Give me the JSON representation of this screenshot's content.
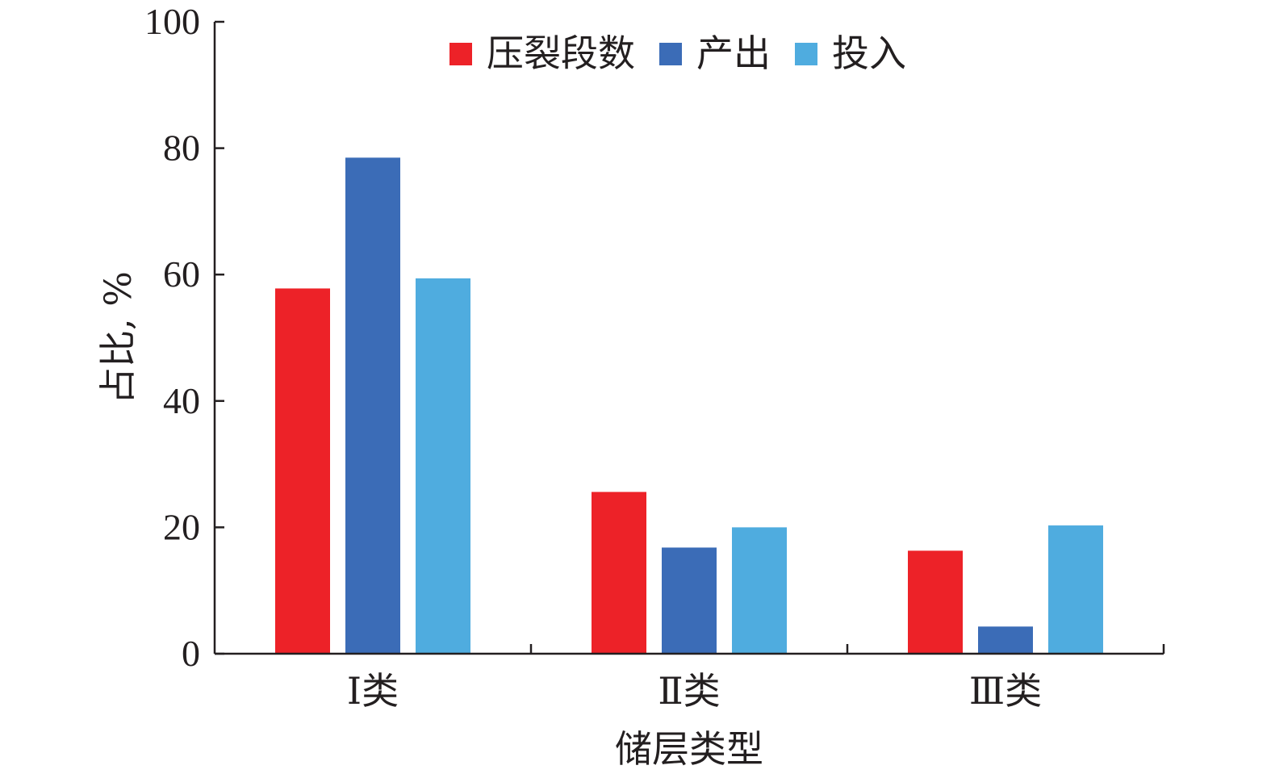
{
  "chart_data": {
    "type": "bar",
    "xlabel": "储层类型",
    "ylabel": "占比, %",
    "ylim": [
      0,
      100
    ],
    "yticks": [
      0,
      20,
      40,
      60,
      80,
      100
    ],
    "categories": [
      "Ⅰ类",
      "Ⅱ类",
      "Ⅲ类"
    ],
    "legend_position": "top-right",
    "grid": false,
    "series": [
      {
        "name": "压裂段数",
        "color": "#ed2228",
        "values": [
          57.8,
          25.6,
          16.3
        ]
      },
      {
        "name": "产出",
        "color": "#3b6cb7",
        "values": [
          78.5,
          16.8,
          4.3
        ]
      },
      {
        "name": "投入",
        "color": "#4facdf",
        "values": [
          59.4,
          20.0,
          20.3
        ]
      }
    ]
  }
}
